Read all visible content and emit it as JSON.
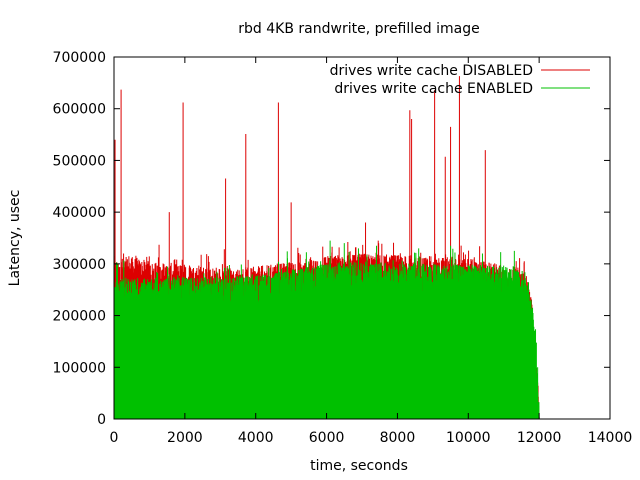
{
  "chart_data": {
    "type": "line",
    "title": "rbd 4KB randwrite, prefilled image",
    "xlabel": "time, seconds",
    "ylabel": "Latency, usec",
    "xlim": [
      0,
      14000
    ],
    "ylim": [
      0,
      700000
    ],
    "xticks": [
      0,
      2000,
      4000,
      6000,
      8000,
      10000,
      12000,
      14000
    ],
    "yticks": [
      0,
      100000,
      200000,
      300000,
      400000,
      500000,
      600000,
      700000
    ],
    "xtick_labels": [
      "0",
      "2000",
      "4000",
      "6000",
      "8000",
      "10000",
      "12000",
      "14000"
    ],
    "ytick_labels": [
      "0",
      "100000",
      "200000",
      "300000",
      "400000",
      "500000",
      "600000",
      "700000"
    ],
    "grid": false,
    "legend_position": "top-right",
    "series": [
      {
        "name": "drives write cache DISABLED",
        "color": "#dd0000",
        "baseline": [
          [
            0,
            280000
          ],
          [
            500,
            285000
          ],
          [
            1000,
            275000
          ],
          [
            2000,
            270000
          ],
          [
            3000,
            265000
          ],
          [
            3500,
            262000
          ],
          [
            4000,
            265000
          ],
          [
            5000,
            275000
          ],
          [
            6000,
            285000
          ],
          [
            7000,
            290000
          ],
          [
            8000,
            288000
          ],
          [
            9000,
            285000
          ],
          [
            10000,
            280000
          ],
          [
            11000,
            270000
          ],
          [
            11600,
            260000
          ],
          [
            11800,
            200000
          ],
          [
            11900,
            120000
          ],
          [
            11960,
            50000
          ],
          [
            11990,
            10000
          ],
          [
            12000,
            0
          ]
        ],
        "spikes": [
          [
            30,
            540000
          ],
          [
            200,
            637000
          ],
          [
            1560,
            400000
          ],
          [
            1950,
            612000
          ],
          [
            3150,
            465000
          ],
          [
            3720,
            551000
          ],
          [
            4640,
            612000
          ],
          [
            5000,
            419000
          ],
          [
            7100,
            380000
          ],
          [
            8350,
            597000
          ],
          [
            8400,
            580000
          ],
          [
            9050,
            636000
          ],
          [
            9350,
            507000
          ],
          [
            9500,
            565000
          ],
          [
            9750,
            663000
          ],
          [
            10480,
            520000
          ]
        ]
      },
      {
        "name": "drives write cache ENABLED",
        "color": "#00c000",
        "baseline": [
          [
            0,
            240000
          ],
          [
            500,
            245000
          ],
          [
            1000,
            242000
          ],
          [
            2000,
            245000
          ],
          [
            3000,
            245000
          ],
          [
            4000,
            248000
          ],
          [
            5000,
            260000
          ],
          [
            6000,
            270000
          ],
          [
            7000,
            275000
          ],
          [
            8000,
            272000
          ],
          [
            9000,
            270000
          ],
          [
            10000,
            268000
          ],
          [
            11000,
            265000
          ],
          [
            11600,
            255000
          ],
          [
            11800,
            200000
          ],
          [
            11900,
            120000
          ],
          [
            11960,
            50000
          ],
          [
            11990,
            10000
          ],
          [
            12000,
            0
          ]
        ],
        "spikes": [
          [
            100,
            300000
          ],
          [
            6100,
            345000
          ],
          [
            6500,
            340000
          ],
          [
            6900,
            330000
          ],
          [
            8600,
            330000
          ],
          [
            9500,
            335000
          ],
          [
            10400,
            320000
          ],
          [
            11300,
            325000
          ]
        ]
      }
    ]
  }
}
